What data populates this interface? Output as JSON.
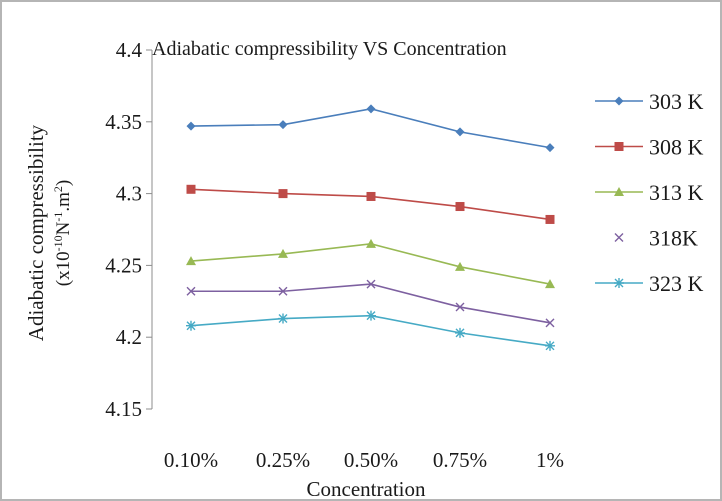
{
  "chart_data": {
    "type": "line",
    "title": "Adiabatic compressibility VS Concentration",
    "xlabel": "Concentration",
    "ylabel_line1": "Adiabatic compressibility",
    "ylabel_line2_prefix": "(x10",
    "ylabel_line2_exp1": "-10",
    "ylabel_line2_mid": "N",
    "ylabel_line2_exp2": "-1",
    "ylabel_line2_mid2": ".m",
    "ylabel_line2_exp3": "2",
    "ylabel_line2_suffix": ")",
    "categories": [
      "0.10%",
      "0.25%",
      "0.50%",
      "0.75%",
      "1%"
    ],
    "ylim": [
      4.15,
      4.4
    ],
    "yticks": [
      4.15,
      4.2,
      4.25,
      4.3,
      4.35,
      4.4
    ],
    "ytick_labels": [
      "4.15",
      "4.2",
      "4.25",
      "4.3",
      "4.35",
      "4.4"
    ],
    "grid": false,
    "legend_position": "right",
    "series": [
      {
        "name": "303 K",
        "values": [
          4.347,
          4.348,
          4.359,
          4.343,
          4.332
        ],
        "color": "#4a7ebb",
        "marker": "diamond"
      },
      {
        "name": "308 K",
        "values": [
          4.303,
          4.3,
          4.298,
          4.291,
          4.282
        ],
        "color": "#be4b48",
        "marker": "square"
      },
      {
        "name": "313 K",
        "values": [
          4.253,
          4.258,
          4.265,
          4.249,
          4.237
        ],
        "color": "#98b954",
        "marker": "triangle"
      },
      {
        "name": "318K",
        "values": [
          4.232,
          4.232,
          4.237,
          4.221,
          4.21
        ],
        "color": "#7d60a0",
        "marker": "x"
      },
      {
        "name": "323 K",
        "values": [
          4.208,
          4.213,
          4.215,
          4.203,
          4.194
        ],
        "color": "#46aac5",
        "marker": "star"
      }
    ]
  }
}
